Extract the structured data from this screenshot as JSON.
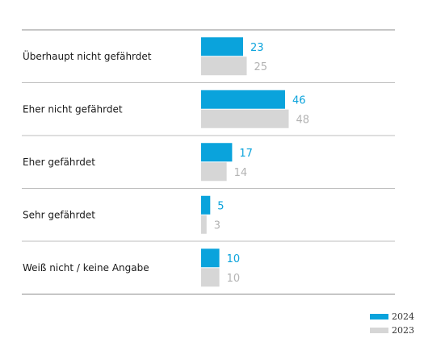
{
  "chart_data": {
    "type": "bar",
    "orientation": "horizontal",
    "categories": [
      "Überhaupt nicht gefährdet",
      "Eher nicht gefährdet",
      "Eher gefährdet",
      "Sehr gefährdet",
      "Weiß nicht / keine Angabe"
    ],
    "series": [
      {
        "name": "2024",
        "values": [
          23,
          46,
          17,
          5,
          10
        ],
        "color": "#0aa3dc"
      },
      {
        "name": "2023",
        "values": [
          25,
          48,
          14,
          3,
          10
        ],
        "color": "#d6d6d6"
      }
    ],
    "value_label_colors": {
      "2024": "#0aa3dc",
      "2023": "#b3b3b3"
    },
    "xlim": [
      0,
      100
    ],
    "title": "",
    "xlabel": "",
    "ylabel": "",
    "grid": false,
    "legend_position": "bottom-right"
  }
}
